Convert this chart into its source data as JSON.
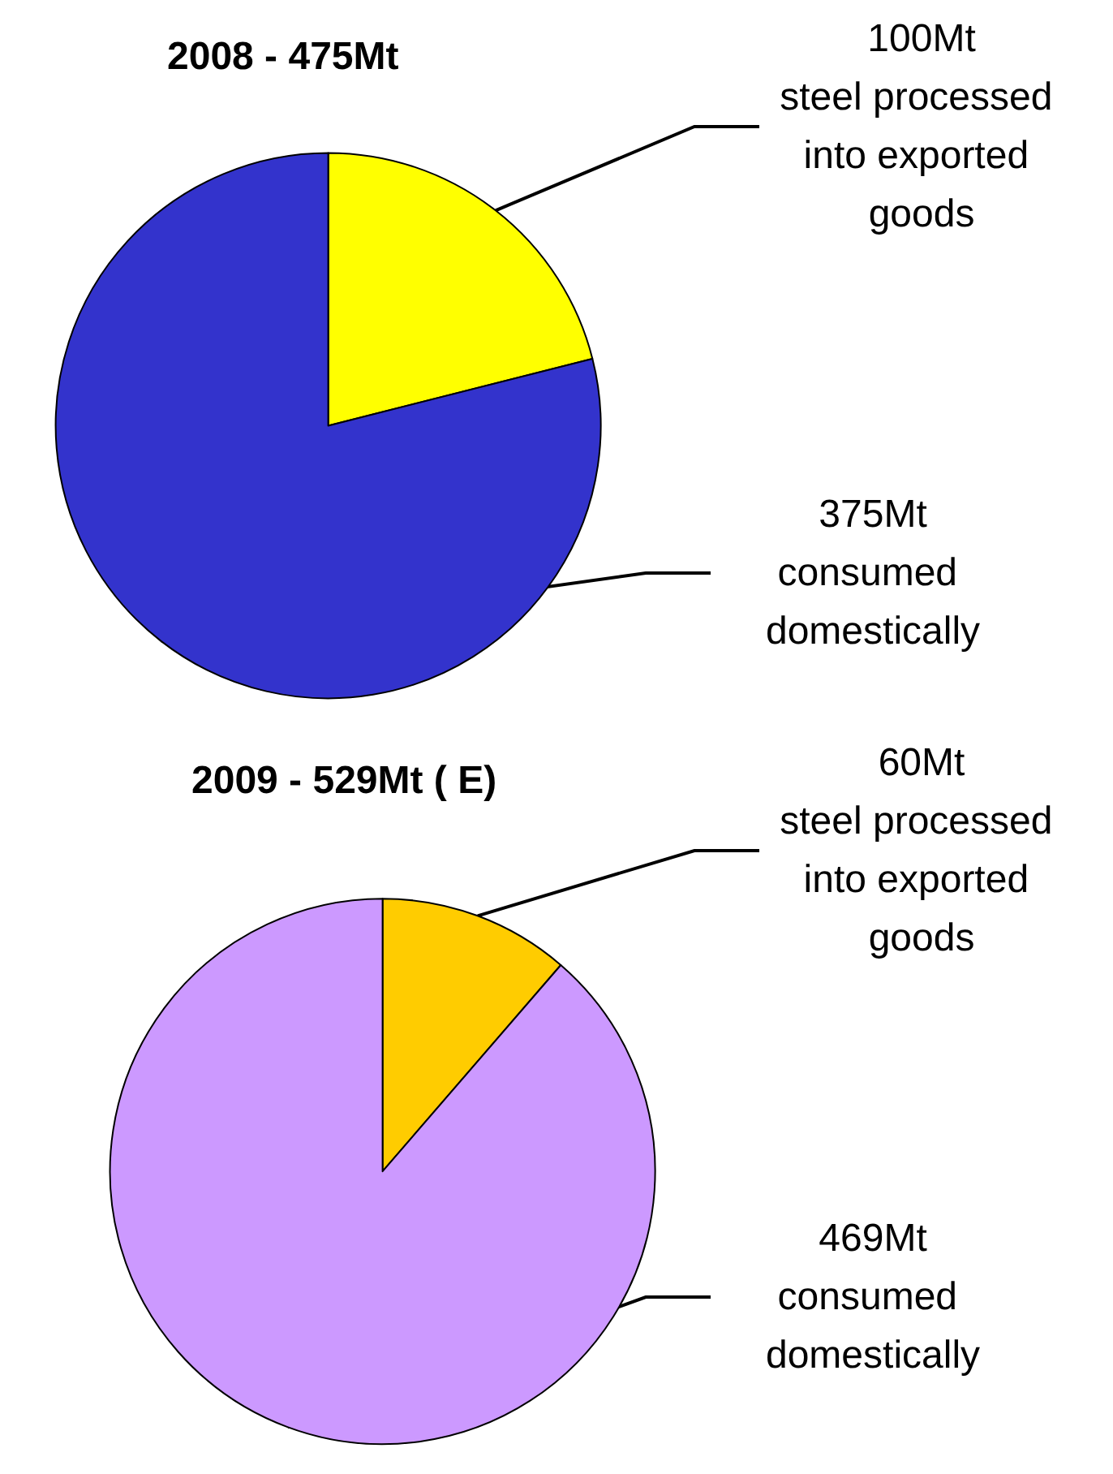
{
  "chart_data": [
    {
      "type": "pie",
      "title": "2008 - 475Mt",
      "categories": [
        "steel processed into exported goods",
        "consumed domestically"
      ],
      "values": [
        100,
        375
      ],
      "value_labels": [
        "100Mt",
        "375Mt"
      ],
      "colors": [
        "#ffff00",
        "#3333cc"
      ],
      "legend": false
    },
    {
      "type": "pie",
      "title": "2009 - 529Mt ( E)",
      "categories": [
        "steel processed into exported goods",
        "consumed domestically"
      ],
      "values": [
        60,
        469
      ],
      "value_labels": [
        "60Mt",
        "469Mt"
      ],
      "colors": [
        "#ffcc00",
        "#cc99ff"
      ],
      "legend": false
    }
  ]
}
